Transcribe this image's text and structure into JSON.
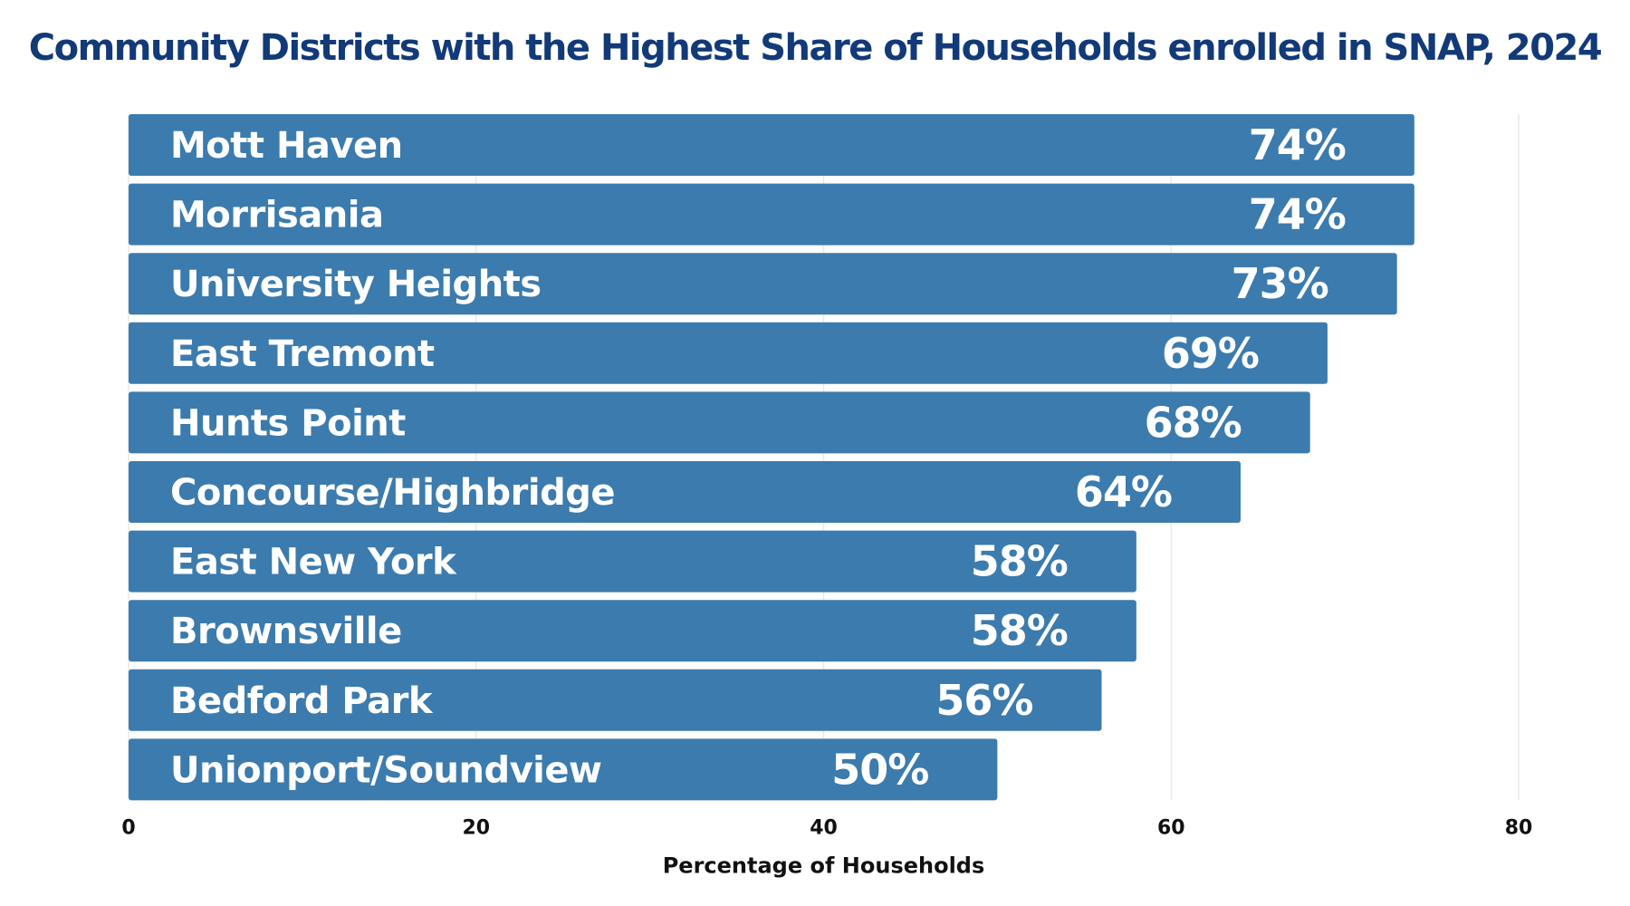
{
  "chart_data": {
    "type": "bar",
    "orientation": "horizontal",
    "title": "Community Districts with the Highest Share of Households enrolled in SNAP, 2024",
    "xlabel": "Percentage of Households",
    "ylabel": "",
    "xlim": [
      0,
      80
    ],
    "xticks": [
      0,
      20,
      40,
      60,
      80
    ],
    "grid": true,
    "categories": [
      "Mott Haven",
      "Morrisania",
      "University Heights",
      "East Tremont",
      "Hunts Point",
      "Concourse/Highbridge",
      "East New York",
      "Brownsville",
      "Bedford Park",
      "Unionport/Soundview"
    ],
    "values": [
      74,
      74,
      73,
      69,
      68,
      64,
      58,
      58,
      56,
      50
    ],
    "value_labels": [
      "74%",
      "74%",
      "73%",
      "69%",
      "68%",
      "64%",
      "58%",
      "58%",
      "56%",
      "50%"
    ],
    "bar_color": "#3c7bad",
    "title_color": "#123a78"
  }
}
